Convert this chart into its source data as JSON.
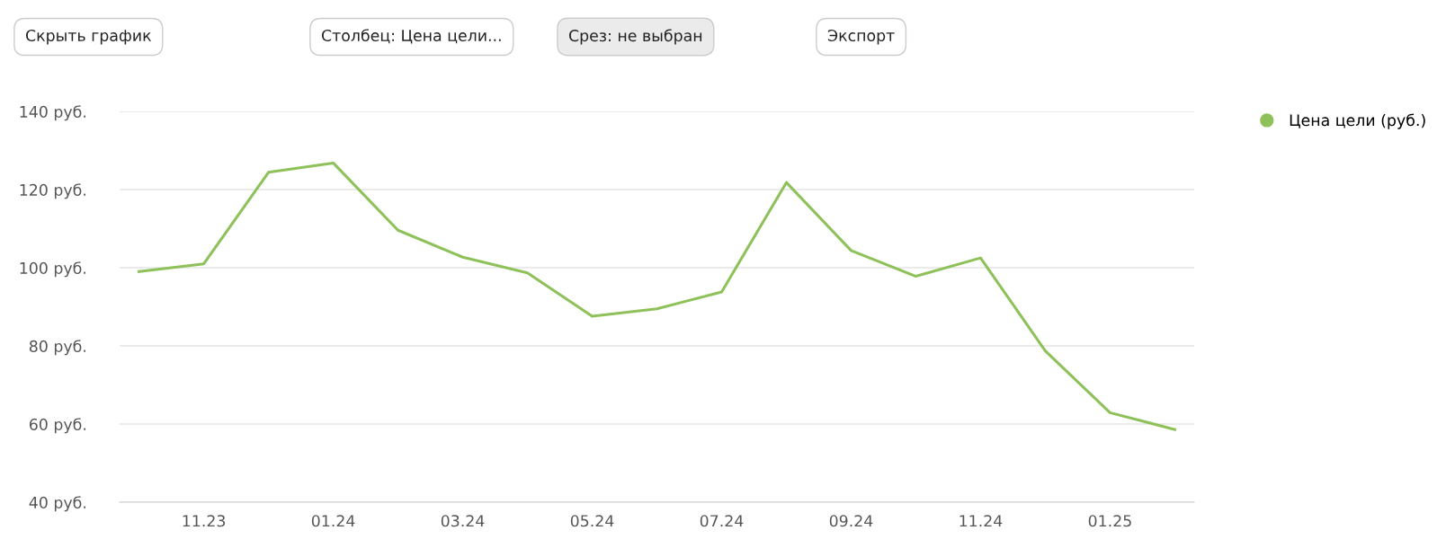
{
  "chart_data": {
    "type": "line",
    "annotations": [
      "Скрыть график",
      "Столбец: Цена цели...",
      "Срез: не выбран",
      "Экспорт"
    ],
    "categories": [
      null,
      "11.23",
      null,
      "01.24",
      null,
      "03.24",
      null,
      "05.24",
      null,
      "07.24",
      null,
      "09.24",
      null,
      "11.24",
      null,
      "01.25",
      null
    ],
    "series": [
      {
        "name": "Цена цели (руб.)",
        "color": "#8fc15a",
        "values": [
          99,
          101,
          124.4,
          126.8,
          109.6,
          102.7,
          98.7,
          87.6,
          89.5,
          93.8,
          121.8,
          104.4,
          97.8,
          102.5,
          78.7,
          62.9,
          58.6
        ]
      }
    ],
    "ylim": [
      40,
      140
    ],
    "yticks": [
      {
        "value": 40,
        "label": "40 руб."
      },
      {
        "value": 60,
        "label": "60 руб."
      },
      {
        "value": 80,
        "label": "80 руб."
      },
      {
        "value": 100,
        "label": "100 руб."
      },
      {
        "value": 120,
        "label": "120 руб."
      },
      {
        "value": 140,
        "label": "140 руб."
      }
    ],
    "grid": "y",
    "legend": "top right",
    "marker": "none",
    "line_style": "solid"
  }
}
